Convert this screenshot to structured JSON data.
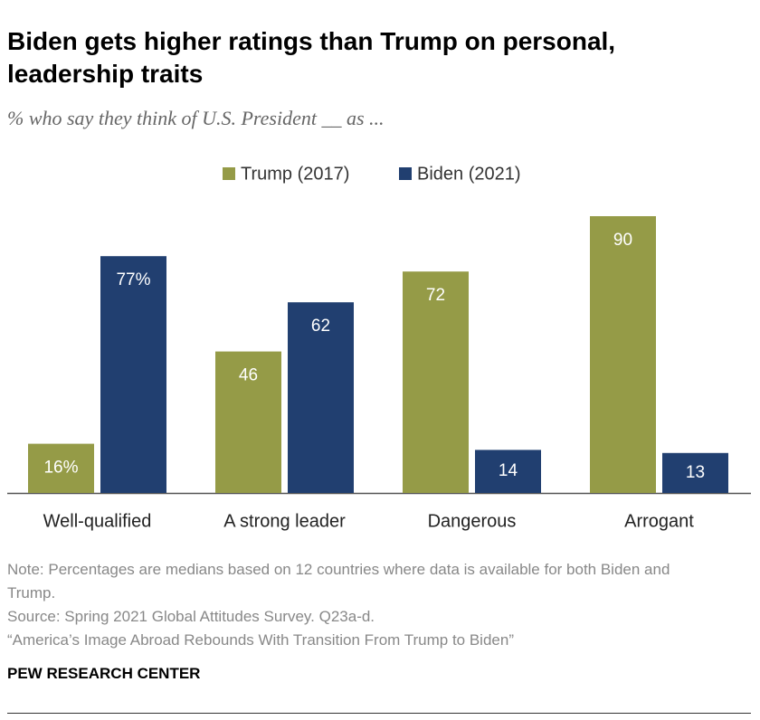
{
  "chart_data": {
    "type": "bar",
    "title": "Biden gets higher ratings than Trump on personal, leadership traits",
    "subtitle": "% who say they think of U.S. President __ as ...",
    "categories": [
      "Well-qualified",
      "A strong leader",
      "Dangerous",
      "Arrogant"
    ],
    "series": [
      {
        "name": "Trump (2017)",
        "color": "#959b47",
        "values": [
          16,
          46,
          72,
          90
        ],
        "value_labels": [
          "16%",
          "46",
          "72",
          "90"
        ]
      },
      {
        "name": "Biden (2021)",
        "color": "#213f70",
        "values": [
          77,
          62,
          14,
          13
        ],
        "value_labels": [
          "77%",
          "62",
          "14",
          "13"
        ]
      }
    ],
    "note": "Note: Percentages are medians based on 12 countries where data is available for both Biden and Trump.",
    "source": "Source: Spring 2021 Global Attitudes Survey. Q23a-d.",
    "report": "“America’s Image Abroad Rebounds With Transition From Trump to Biden”",
    "credit": "PEW RESEARCH CENTER"
  }
}
